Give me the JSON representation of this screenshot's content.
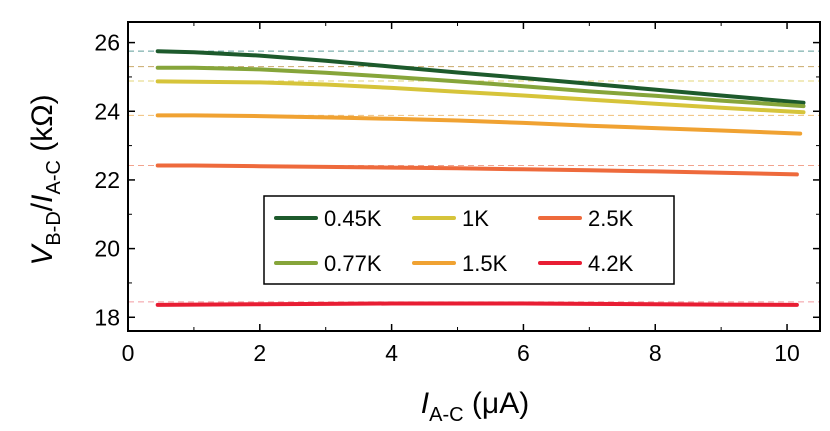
{
  "chart_data": {
    "type": "line",
    "xlabel": {
      "main": "I",
      "sub": "A-C",
      "unit": " (μA)"
    },
    "ylabel": {
      "main1": "V",
      "sub1": "B-D",
      "slash": "/",
      "main2": "I",
      "sub2": "A-C",
      "unit": " (kΩ)"
    },
    "xlim": [
      0,
      10.5
    ],
    "ylim": [
      17.6,
      26.6
    ],
    "xticks": [
      0,
      2,
      4,
      6,
      8,
      10
    ],
    "yticks": [
      18,
      20,
      22,
      24,
      26
    ],
    "grid": false,
    "legend_position": "center",
    "legend_columns": 3,
    "series": [
      {
        "name": "0.45K",
        "color": "#1d5a2c",
        "ref_line": 25.75,
        "ref_color": "#5f9e9a",
        "x": [
          0.45,
          1,
          2,
          3,
          4,
          5,
          6,
          7,
          8,
          9,
          10.25
        ],
        "y": [
          25.75,
          25.72,
          25.62,
          25.47,
          25.3,
          25.13,
          24.97,
          24.8,
          24.63,
          24.46,
          24.25
        ]
      },
      {
        "name": "0.77K",
        "color": "#86a53a",
        "ref_line": 25.3,
        "ref_color": "#c9a96a",
        "x": [
          0.45,
          1,
          2,
          3,
          4,
          5,
          6,
          7,
          8,
          9,
          10.25
        ],
        "y": [
          25.27,
          25.27,
          25.22,
          25.12,
          25.0,
          24.87,
          24.73,
          24.58,
          24.45,
          24.31,
          24.15
        ]
      },
      {
        "name": "1K",
        "color": "#d6c43a",
        "ref_line": 24.88,
        "ref_color": "#e3d67a",
        "x": [
          0.45,
          1,
          2,
          3,
          4,
          5,
          6,
          7,
          8,
          9,
          10.25
        ],
        "y": [
          24.87,
          24.86,
          24.84,
          24.78,
          24.68,
          24.57,
          24.46,
          24.34,
          24.22,
          24.1,
          23.97
        ]
      },
      {
        "name": "1.5K",
        "color": "#f0a232",
        "ref_line": 23.88,
        "ref_color": "#f0c07a",
        "x": [
          0.45,
          1,
          2,
          3,
          4,
          5,
          6,
          7,
          8,
          9,
          10.2
        ],
        "y": [
          23.88,
          23.88,
          23.86,
          23.82,
          23.78,
          23.73,
          23.66,
          23.58,
          23.51,
          23.44,
          23.35
        ]
      },
      {
        "name": "2.5K",
        "color": "#ee6a3c",
        "ref_line": 22.42,
        "ref_color": "#f2a38d",
        "x": [
          0.45,
          1,
          2,
          3,
          4,
          5,
          6,
          7,
          8,
          9,
          10.15
        ],
        "y": [
          22.42,
          22.42,
          22.4,
          22.38,
          22.36,
          22.34,
          22.31,
          22.28,
          22.25,
          22.21,
          22.16
        ]
      },
      {
        "name": "4.2K",
        "color": "#e81d33",
        "ref_line": 18.45,
        "ref_color": "#f29aa0",
        "x": [
          0.45,
          1,
          2,
          3,
          4,
          5,
          6,
          7,
          8,
          9,
          10.15
        ],
        "y": [
          18.36,
          18.37,
          18.38,
          18.39,
          18.4,
          18.4,
          18.4,
          18.39,
          18.38,
          18.37,
          18.36
        ]
      }
    ]
  }
}
